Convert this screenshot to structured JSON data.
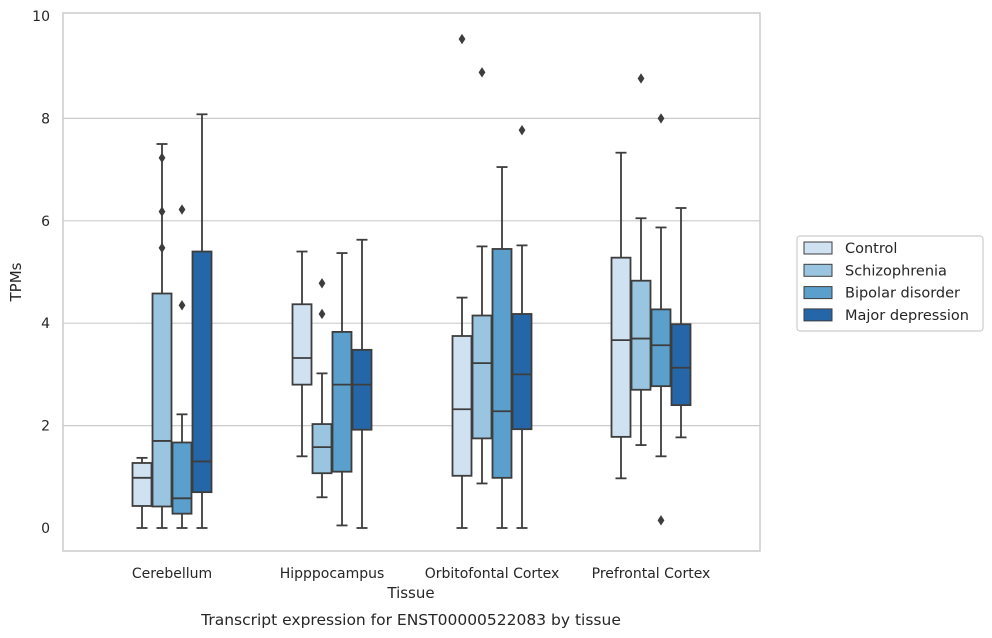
{
  "chart_data": {
    "type": "box",
    "xlabel": "Tissue",
    "ylabel": "TPMs",
    "caption": "Transcript expression for ENST00000522083 by tissue",
    "ylim": [
      -0.45,
      10.05
    ],
    "yticks": [
      0,
      2,
      4,
      6,
      8,
      10
    ],
    "grid": "horizontal",
    "legend_position": "right",
    "categories": [
      "Cerebellum",
      "Hipppocampus",
      "Orbitofontal Cortex",
      "Prefrontal Cortex"
    ],
    "series": [
      {
        "name": "Control",
        "color": "#d0e1f2",
        "boxes": [
          {
            "whisker_low": 0.0,
            "q1": 0.43,
            "median": 0.98,
            "q3": 1.27,
            "whisker_high": 1.37,
            "outliers": []
          },
          {
            "whisker_low": 1.4,
            "q1": 2.8,
            "median": 3.32,
            "q3": 4.37,
            "whisker_high": 5.4,
            "outliers": []
          },
          {
            "whisker_low": 0.0,
            "q1": 1.02,
            "median": 2.32,
            "q3": 3.75,
            "whisker_high": 4.5,
            "outliers": [
              9.55
            ]
          },
          {
            "whisker_low": 0.97,
            "q1": 1.78,
            "median": 3.67,
            "q3": 5.28,
            "whisker_high": 7.33,
            "outliers": []
          }
        ]
      },
      {
        "name": "Schizophrenia",
        "color": "#9ac5e0",
        "boxes": [
          {
            "whisker_low": 0.0,
            "q1": 0.42,
            "median": 1.7,
            "q3": 4.58,
            "whisker_high": 7.5,
            "outliers": [
              7.23,
              6.18,
              5.47
            ]
          },
          {
            "whisker_low": 0.6,
            "q1": 1.07,
            "median": 1.58,
            "q3": 2.03,
            "whisker_high": 3.02,
            "outliers": [
              4.78,
              4.18
            ]
          },
          {
            "whisker_low": 0.87,
            "q1": 1.75,
            "median": 3.22,
            "q3": 4.15,
            "whisker_high": 5.5,
            "outliers": [
              8.9
            ]
          },
          {
            "whisker_low": 1.62,
            "q1": 2.7,
            "median": 3.7,
            "q3": 4.83,
            "whisker_high": 6.05,
            "outliers": [
              8.78
            ]
          }
        ]
      },
      {
        "name": "Bipolar disorder",
        "color": "#5b9fcc",
        "boxes": [
          {
            "whisker_low": 0.0,
            "q1": 0.28,
            "median": 0.58,
            "q3": 1.67,
            "whisker_high": 2.22,
            "outliers": [
              6.22,
              4.35
            ]
          },
          {
            "whisker_low": 0.05,
            "q1": 1.1,
            "median": 2.8,
            "q3": 3.83,
            "whisker_high": 5.37,
            "outliers": []
          },
          {
            "whisker_low": 0.0,
            "q1": 0.98,
            "median": 2.28,
            "q3": 5.45,
            "whisker_high": 7.05,
            "outliers": []
          },
          {
            "whisker_low": 1.4,
            "q1": 2.77,
            "median": 3.57,
            "q3": 4.27,
            "whisker_high": 5.87,
            "outliers": [
              8.0,
              0.15
            ]
          }
        ]
      },
      {
        "name": "Major depression",
        "color": "#2566a8",
        "boxes": [
          {
            "whisker_low": 0.0,
            "q1": 0.7,
            "median": 1.3,
            "q3": 5.4,
            "whisker_high": 8.08,
            "outliers": []
          },
          {
            "whisker_low": 0.0,
            "q1": 1.92,
            "median": 2.8,
            "q3": 3.48,
            "whisker_high": 5.63,
            "outliers": []
          },
          {
            "whisker_low": 0.0,
            "q1": 1.93,
            "median": 3.0,
            "q3": 4.18,
            "whisker_high": 5.52,
            "outliers": [
              7.77
            ]
          },
          {
            "whisker_low": 1.77,
            "q1": 2.4,
            "median": 3.13,
            "q3": 3.98,
            "whisker_high": 6.25,
            "outliers": []
          }
        ]
      }
    ]
  }
}
